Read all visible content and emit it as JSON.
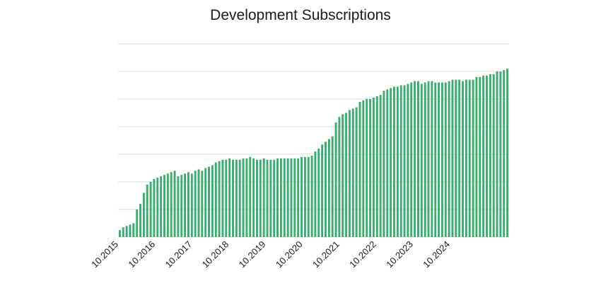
{
  "chart_data": {
    "type": "bar",
    "title": "Development Subscriptions",
    "xlabel": "",
    "ylabel": "",
    "grid": true,
    "legend": "none",
    "bar_color": "#3cab6e",
    "grid_color": "#d9d9d9",
    "ylim": [
      0,
      7
    ],
    "x_tick_labels": [
      "10.2015",
      "10.2016",
      "10.2017",
      "10.2018",
      "10.2019",
      "10.2020",
      "10.2021",
      "10.2022",
      "10.2023",
      "10.2024"
    ],
    "values": [
      0.25,
      0.35,
      0.4,
      0.45,
      0.5,
      1.0,
      1.2,
      1.6,
      1.9,
      2.0,
      2.1,
      2.15,
      2.2,
      2.25,
      2.3,
      2.35,
      2.4,
      2.2,
      2.25,
      2.3,
      2.35,
      2.3,
      2.4,
      2.45,
      2.4,
      2.5,
      2.55,
      2.6,
      2.7,
      2.75,
      2.8,
      2.8,
      2.85,
      2.8,
      2.8,
      2.8,
      2.85,
      2.85,
      2.9,
      2.85,
      2.8,
      2.8,
      2.85,
      2.8,
      2.8,
      2.8,
      2.85,
      2.85,
      2.85,
      2.85,
      2.85,
      2.85,
      2.85,
      2.9,
      2.9,
      2.9,
      2.95,
      3.1,
      3.2,
      3.35,
      3.45,
      3.55,
      3.65,
      4.15,
      4.35,
      4.45,
      4.5,
      4.6,
      4.65,
      4.7,
      4.9,
      4.95,
      5.0,
      5.0,
      5.05,
      5.1,
      5.15,
      5.3,
      5.35,
      5.4,
      5.45,
      5.45,
      5.5,
      5.5,
      5.55,
      5.6,
      5.65,
      5.65,
      5.55,
      5.6,
      5.65,
      5.65,
      5.6,
      5.6,
      5.6,
      5.6,
      5.65,
      5.7,
      5.7,
      5.7,
      5.65,
      5.7,
      5.7,
      5.7,
      5.8,
      5.8,
      5.85,
      5.85,
      5.9,
      5.9,
      6.0,
      6.0,
      6.05,
      6.1
    ]
  }
}
